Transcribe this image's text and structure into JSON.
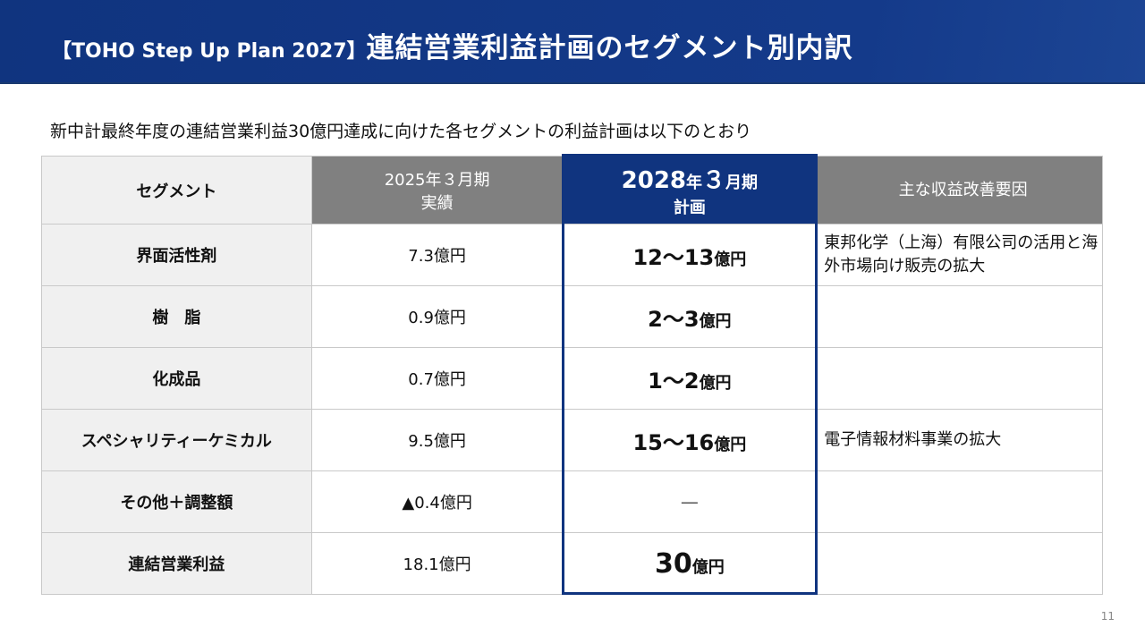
{
  "header": {
    "bracket_title": "【TOHO Step Up Plan 2027】",
    "title": "連結営業利益計画のセグメント別内訳"
  },
  "subtitle": "新中計最終年度の連結営業利益30億円達成に向けた各セグメントの利益計画は以下のとおり",
  "table": {
    "headers": {
      "segment": "セグメント",
      "actual_line1": "2025年３月期",
      "actual_line2": "実績",
      "plan_year": "2028",
      "plan_nen": "年",
      "plan_month": "３",
      "plan_tsuki": "月期",
      "plan_line2": "計画",
      "factors": "主な収益改善要因"
    },
    "rows": [
      {
        "segment": "界面活性剤",
        "actual": "7.3億円",
        "plan": "12〜13",
        "unit": "億円",
        "factor": "東邦化学（上海）有限公司の活用と海外市場向け販売の拡大"
      },
      {
        "segment": "樹　脂",
        "actual": "0.9億円",
        "plan": "2〜3",
        "unit": "億円",
        "factor": ""
      },
      {
        "segment": "化成品",
        "actual": "0.7億円",
        "plan": "1〜2",
        "unit": "億円",
        "factor": ""
      },
      {
        "segment": "スペシャリティーケミカル",
        "actual": "9.5億円",
        "plan": "15〜16",
        "unit": "億円",
        "factor": "電子情報材料事業の拡大"
      },
      {
        "segment": "その他＋調整額",
        "actual": "▲0.4億円",
        "plan": "—",
        "unit": "",
        "factor": ""
      },
      {
        "segment": "連結営業利益",
        "actual": "18.1億円",
        "plan": "30",
        "unit": "億円",
        "factor": ""
      }
    ]
  },
  "page_number": "11"
}
